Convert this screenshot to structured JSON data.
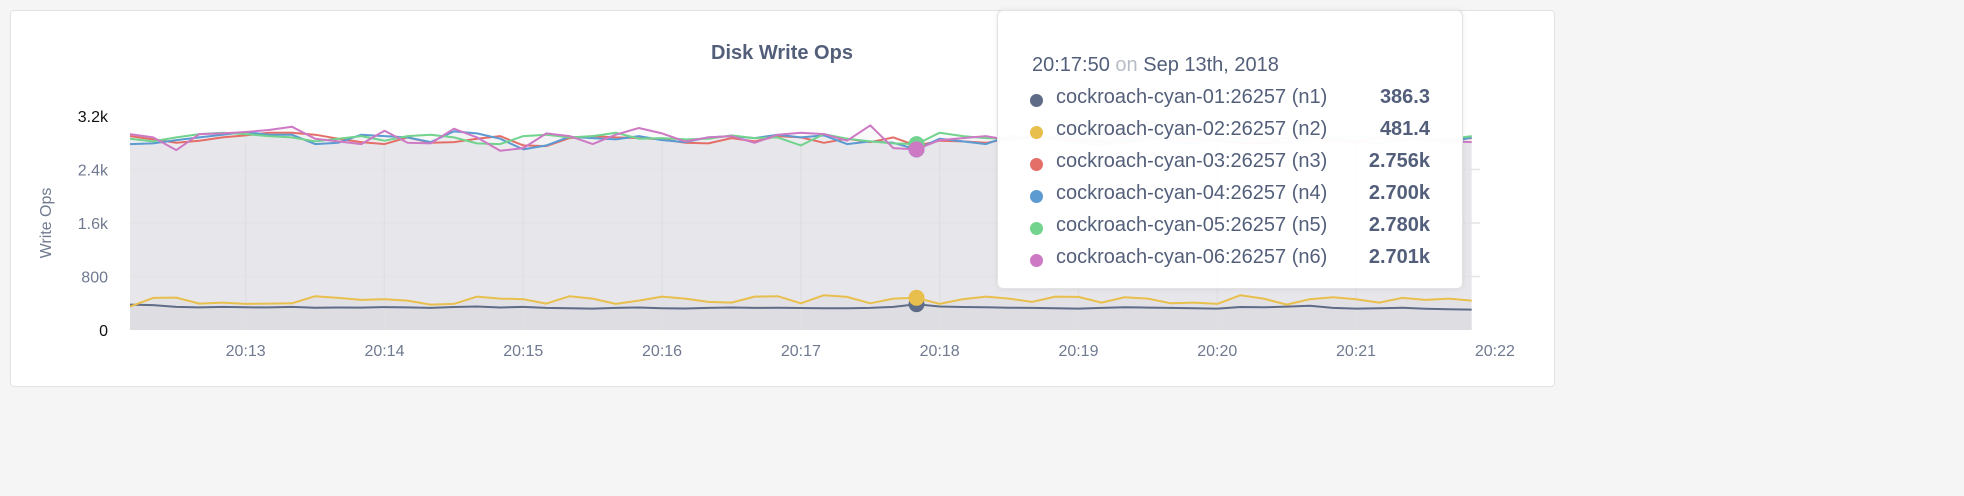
{
  "chart_data": {
    "type": "line",
    "title": "Disk Write Ops",
    "ylabel": "Write Ops",
    "xlabel": "",
    "ylim": [
      0,
      3200
    ],
    "yticks": [
      "0",
      "800",
      "1.6k",
      "2.4k",
      "3.2k"
    ],
    "ytick_values": [
      0,
      800,
      1600,
      2400,
      3200
    ],
    "xticks": [
      "20:13",
      "20:14",
      "20:15",
      "20:16",
      "20:17",
      "20:18",
      "20:19",
      "20:20",
      "20:21",
      "20:22"
    ],
    "grid": true,
    "x": [
      "20:12:10",
      "20:12:20",
      "20:12:30",
      "20:12:40",
      "20:12:50",
      "20:13:00",
      "20:13:10",
      "20:13:20",
      "20:13:30",
      "20:13:40",
      "20:13:50",
      "20:14:00",
      "20:14:10",
      "20:14:20",
      "20:14:30",
      "20:14:40",
      "20:14:50",
      "20:15:00",
      "20:15:10",
      "20:15:20",
      "20:15:30",
      "20:15:40",
      "20:15:50",
      "20:16:00",
      "20:16:10",
      "20:16:20",
      "20:16:30",
      "20:16:40",
      "20:16:50",
      "20:17:00",
      "20:17:10",
      "20:17:20",
      "20:17:30",
      "20:17:40",
      "20:17:50",
      "20:18:00",
      "20:18:10",
      "20:18:20",
      "20:18:30",
      "20:18:40",
      "20:18:50",
      "20:19:00",
      "20:19:10",
      "20:19:20",
      "20:19:30",
      "20:19:40",
      "20:19:50",
      "20:20:00",
      "20:20:10",
      "20:20:20",
      "20:20:30",
      "20:20:40",
      "20:20:50",
      "20:21:00",
      "20:21:10",
      "20:21:20",
      "20:21:30",
      "20:21:40",
      "20:21:50"
    ],
    "series": [
      {
        "name": "cockroach-cyan-01:26257 (n1)",
        "color": "#5f6c87",
        "values": [
          380,
          372,
          345,
          338,
          345,
          340,
          338,
          345,
          332,
          336,
          335,
          342,
          338,
          330,
          344,
          352,
          336,
          346,
          331,
          326,
          320,
          330,
          336,
          326,
          322,
          331,
          336,
          330,
          334,
          329,
          326,
          324,
          330,
          345,
          386.3,
          352,
          344,
          340,
          334,
          330,
          324,
          320,
          331,
          340,
          335,
          330,
          325,
          320,
          344,
          340,
          350,
          362,
          330,
          320,
          326,
          332,
          318,
          310,
          305
        ]
      },
      {
        "name": "cockroach-cyan-02:26257 (n2)",
        "color": "#e8bf4c",
        "values": [
          350,
          480,
          485,
          395,
          410,
          390,
          395,
          400,
          505,
          480,
          450,
          460,
          440,
          380,
          390,
          500,
          470,
          460,
          395,
          505,
          470,
          390,
          440,
          500,
          470,
          420,
          410,
          500,
          505,
          400,
          520,
          495,
          400,
          470,
          481.4,
          390,
          460,
          500,
          470,
          420,
          500,
          495,
          410,
          490,
          470,
          400,
          410,
          390,
          520,
          470,
          380,
          460,
          490,
          460,
          410,
          480,
          450,
          470,
          440
        ]
      },
      {
        "name": "cockroach-cyan-03:26257 (n3)",
        "color": "#e46e68",
        "values": [
          2900,
          2850,
          2800,
          2830,
          2880,
          2910,
          2950,
          2950,
          2920,
          2860,
          2810,
          2780,
          2880,
          2800,
          2810,
          2860,
          2900,
          2760,
          2750,
          2870,
          2900,
          2880,
          2870,
          2850,
          2800,
          2790,
          2870,
          2820,
          2900,
          2880,
          2800,
          2860,
          2810,
          2880,
          2756,
          2830,
          2820,
          2800,
          2860,
          2900,
          2880,
          2840,
          2820,
          2800,
          2850,
          2880,
          2860,
          2820,
          2800,
          2790,
          2810,
          2850,
          2840,
          2820,
          2880,
          2860,
          2840,
          2850,
          2870
        ]
      },
      {
        "name": "cockroach-cyan-04:26257 (n4)",
        "color": "#5b9bd1",
        "values": [
          2780,
          2790,
          2840,
          2880,
          2920,
          2960,
          2920,
          2920,
          2780,
          2800,
          2920,
          2900,
          2880,
          2810,
          2970,
          2940,
          2860,
          2700,
          2760,
          2890,
          2870,
          2850,
          2900,
          2840,
          2810,
          2880,
          2900,
          2870,
          2920,
          2880,
          2910,
          2780,
          2820,
          2800,
          2700,
          2860,
          2820,
          2780,
          2900,
          2880,
          2850,
          2800,
          2760,
          2840,
          2880,
          2820,
          2790,
          2850,
          2870,
          2820,
          2800,
          2860,
          2880,
          2830,
          2790,
          2850,
          2870,
          2800,
          2880
        ]
      },
      {
        "name": "cockroach-cyan-05:26257 (n5)",
        "color": "#71d38d",
        "values": [
          2860,
          2820,
          2880,
          2930,
          2950,
          2930,
          2900,
          2880,
          2820,
          2860,
          2900,
          2830,
          2900,
          2920,
          2880,
          2790,
          2780,
          2900,
          2920,
          2880,
          2900,
          2950,
          2860,
          2870,
          2850,
          2860,
          2910,
          2870,
          2880,
          2760,
          2930,
          2860,
          2820,
          2790,
          2780,
          2950,
          2900,
          2870,
          2860,
          2880,
          2900,
          2870,
          2840,
          2820,
          2860,
          2900,
          2880,
          2840,
          2820,
          2860,
          2880,
          2850,
          2870,
          2900,
          2860,
          2830,
          2870,
          2850,
          2900
        ]
      },
      {
        "name": "cockroach-cyan-06:26257 (n6)",
        "color": "#cd79c4",
        "values": [
          2930,
          2880,
          2690,
          2930,
          2940,
          2960,
          2990,
          3040,
          2860,
          2820,
          2780,
          2980,
          2800,
          2790,
          3010,
          2880,
          2680,
          2720,
          2940,
          2900,
          2780,
          2920,
          3020,
          2940,
          2820,
          2880,
          2900,
          2800,
          2920,
          2950,
          2930,
          2830,
          3060,
          2720,
          2701,
          2840,
          2870,
          2900,
          2840,
          2880,
          2860,
          2820,
          2800,
          2880,
          2900,
          2860,
          2830,
          2850,
          2880,
          2820,
          2860,
          2900,
          2840,
          2800,
          2870,
          2850,
          2880,
          2820,
          2810
        ]
      }
    ],
    "hover_index": 34
  },
  "tooltip": {
    "time": "20:17:50",
    "on": "on",
    "date": "Sep 13th, 2018",
    "rows": [
      {
        "label": "cockroach-cyan-01:26257 (n1)",
        "value": "386.3",
        "color": "#5f6c87"
      },
      {
        "label": "cockroach-cyan-02:26257 (n2)",
        "value": "481.4",
        "color": "#e8bf4c"
      },
      {
        "label": "cockroach-cyan-03:26257 (n3)",
        "value": "2.756k",
        "color": "#e46e68"
      },
      {
        "label": "cockroach-cyan-04:26257 (n4)",
        "value": "2.700k",
        "color": "#5b9bd1"
      },
      {
        "label": "cockroach-cyan-05:26257 (n5)",
        "value": "2.780k",
        "color": "#71d38d"
      },
      {
        "label": "cockroach-cyan-06:26257 (n6)",
        "value": "2.701k",
        "color": "#cd79c4"
      }
    ]
  }
}
